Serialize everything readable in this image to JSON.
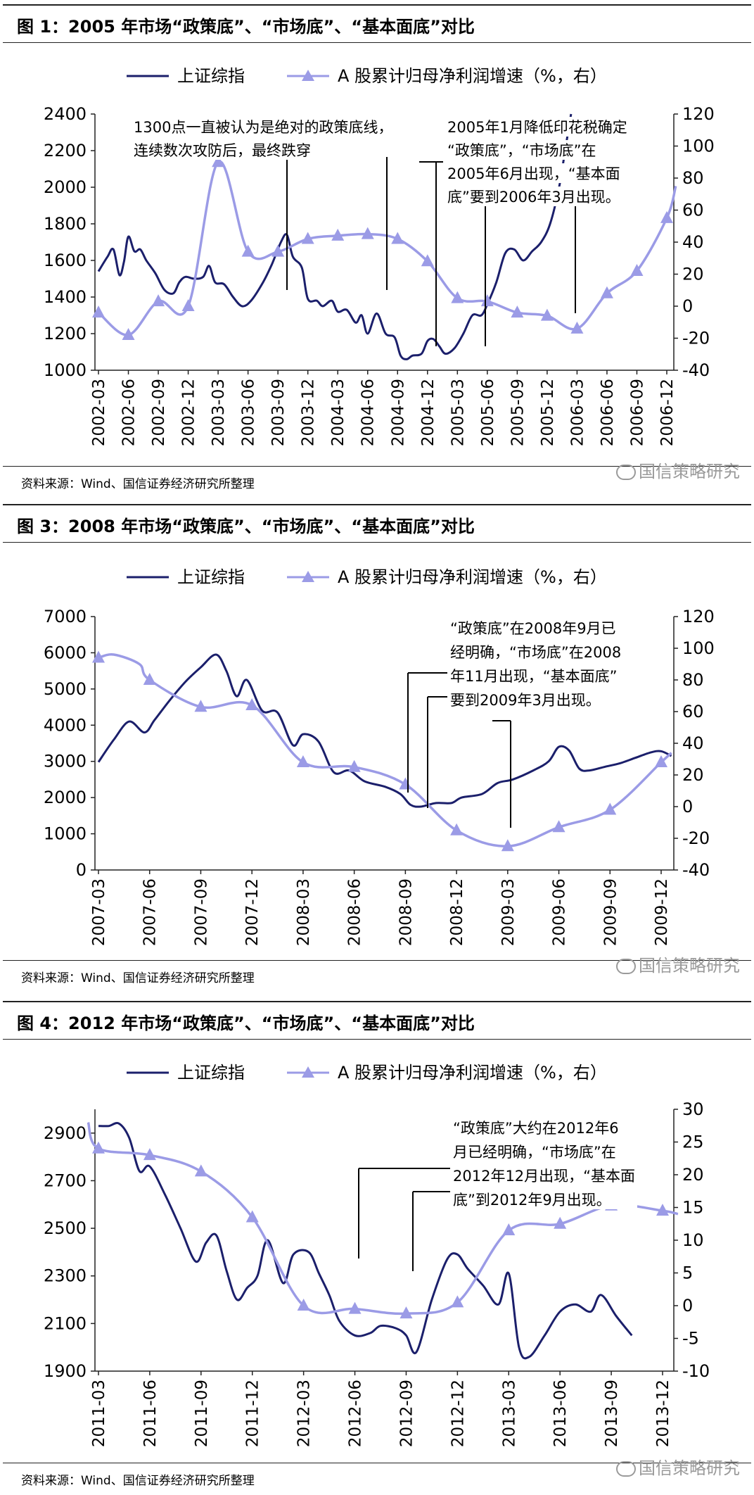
{
  "colors": {
    "index_line": "#1b1f6b",
    "profit_line": "#9b9be6",
    "frame": "#222222",
    "watermark": "#9a9a9a"
  },
  "source": "资料来源：Wind、国信证券经济研究所整理",
  "watermark": "国信策略研究",
  "chart_data": [
    {
      "type": "line",
      "title": "图 1：2005 年市场“政策底”、“市场底”、“基本面底”对比",
      "legend": [
        "上证综指",
        "A 股累计归母净利润增速（%，右）"
      ],
      "categories": [
        "2002-03",
        "2002-06",
        "2002-09",
        "2002-12",
        "2003-03",
        "2003-06",
        "2003-09",
        "2003-12",
        "2004-03",
        "2004-06",
        "2004-09",
        "2004-12",
        "2005-03",
        "2005-06",
        "2005-09",
        "2005-12",
        "2006-03",
        "2006-06",
        "2006-09",
        "2006-12"
      ],
      "ylim": [
        1000,
        2400
      ],
      "yticks": [
        1000,
        1200,
        1400,
        1600,
        1800,
        2000,
        2200,
        2400
      ],
      "y2lim": [
        -40,
        120
      ],
      "y2ticks": [
        -40,
        -20,
        0,
        20,
        40,
        60,
        80,
        100,
        120
      ],
      "series": [
        {
          "name": "上证综指",
          "axis": "left",
          "points": [
            [
              0,
              1540
            ],
            [
              0.3,
              1620
            ],
            [
              0.5,
              1660
            ],
            [
              0.7,
              1520
            ],
            [
              0.85,
              1590
            ],
            [
              1.0,
              1730
            ],
            [
              1.2,
              1650
            ],
            [
              1.4,
              1660
            ],
            [
              1.6,
              1600
            ],
            [
              1.9,
              1530
            ],
            [
              2.2,
              1440
            ],
            [
              2.5,
              1420
            ],
            [
              2.7,
              1480
            ],
            [
              2.9,
              1510
            ],
            [
              3.2,
              1500
            ],
            [
              3.5,
              1510
            ],
            [
              3.7,
              1570
            ],
            [
              3.9,
              1480
            ],
            [
              4.2,
              1470
            ],
            [
              4.5,
              1400
            ],
            [
              4.8,
              1350
            ],
            [
              5.1,
              1380
            ],
            [
              5.5,
              1480
            ],
            [
              5.8,
              1580
            ],
            [
              6.1,
              1700
            ],
            [
              6.3,
              1740
            ],
            [
              6.5,
              1620
            ],
            [
              6.8,
              1560
            ],
            [
              7.0,
              1390
            ],
            [
              7.3,
              1380
            ],
            [
              7.5,
              1350
            ],
            [
              7.8,
              1380
            ],
            [
              8.0,
              1320
            ],
            [
              8.3,
              1330
            ],
            [
              8.6,
              1260
            ],
            [
              8.8,
              1300
            ],
            [
              9.0,
              1200
            ],
            [
              9.3,
              1310
            ],
            [
              9.6,
              1200
            ],
            [
              9.9,
              1180
            ],
            [
              10.1,
              1080
            ],
            [
              10.3,
              1060
            ],
            [
              10.5,
              1080
            ],
            [
              10.8,
              1090
            ],
            [
              11.0,
              1160
            ],
            [
              11.2,
              1170
            ],
            [
              11.4,
              1130
            ],
            [
              11.6,
              1090
            ],
            [
              11.9,
              1120
            ],
            [
              12.2,
              1200
            ],
            [
              12.5,
              1300
            ],
            [
              12.8,
              1300
            ],
            [
              13.0,
              1360
            ],
            [
              13.3,
              1480
            ],
            [
              13.6,
              1640
            ],
            [
              13.9,
              1660
            ],
            [
              14.2,
              1600
            ],
            [
              14.5,
              1650
            ],
            [
              14.8,
              1700
            ],
            [
              15.1,
              1800
            ],
            [
              15.4,
              2000
            ],
            [
              15.6,
              2200
            ],
            [
              15.8,
              2400
            ]
          ]
        },
        {
          "name": "A 股累计归母净利润增速（%，右）",
          "axis": "right",
          "points": [
            [
              0,
              -4
            ],
            [
              1,
              -18
            ],
            [
              2,
              3
            ],
            [
              3,
              0
            ],
            [
              4,
              90
            ],
            [
              5,
              34
            ],
            [
              6,
              34
            ],
            [
              7,
              42
            ],
            [
              8,
              44
            ],
            [
              9,
              45
            ],
            [
              10,
              42
            ],
            [
              11,
              28
            ],
            [
              12,
              5
            ],
            [
              13,
              3
            ],
            [
              14,
              -4
            ],
            [
              15,
              -6
            ],
            [
              16,
              -14
            ],
            [
              17,
              8
            ],
            [
              18,
              22
            ],
            [
              19,
              55
            ],
            [
              19.3,
              75
            ]
          ]
        }
      ],
      "annotations": [
        "1300点一直被认为是绝对的政策底线，",
        "连续数次攻防后，最终跌穿",
        "2005年1月降低印花税确定",
        "“政策底”，“市场底”在",
        "2005年6月出现，“基本面",
        "底”要到2006年3月出现。"
      ]
    },
    {
      "type": "line",
      "title": "图 3：2008 年市场“政策底”、“市场底”、“基本面底”对比",
      "legend": [
        "上证综指",
        "A 股累计归母净利润增速（%，右）"
      ],
      "categories": [
        "2007-03",
        "2007-06",
        "2007-09",
        "2007-12",
        "2008-03",
        "2008-06",
        "2008-09",
        "2008-12",
        "2009-03",
        "2009-06",
        "2009-09",
        "2009-12"
      ],
      "ylim": [
        0,
        7000
      ],
      "yticks": [
        0,
        1000,
        2000,
        3000,
        4000,
        5000,
        6000,
        7000
      ],
      "y2lim": [
        -40,
        120
      ],
      "y2ticks": [
        -40,
        -20,
        0,
        20,
        40,
        60,
        80,
        100,
        120
      ],
      "series": [
        {
          "name": "上证综指",
          "axis": "left",
          "points": [
            [
              0,
              2980
            ],
            [
              0.3,
              3600
            ],
            [
              0.6,
              4100
            ],
            [
              0.9,
              3800
            ],
            [
              1.1,
              4150
            ],
            [
              1.4,
              4700
            ],
            [
              1.7,
              5200
            ],
            [
              2.0,
              5600
            ],
            [
              2.3,
              5950
            ],
            [
              2.5,
              5500
            ],
            [
              2.7,
              4800
            ],
            [
              2.9,
              5250
            ],
            [
              3.2,
              4400
            ],
            [
              3.5,
              4350
            ],
            [
              3.8,
              3450
            ],
            [
              4.0,
              3750
            ],
            [
              4.3,
              3550
            ],
            [
              4.6,
              2700
            ],
            [
              4.9,
              2750
            ],
            [
              5.2,
              2450
            ],
            [
              5.6,
              2300
            ],
            [
              5.9,
              2100
            ],
            [
              6.1,
              1800
            ],
            [
              6.3,
              1750
            ],
            [
              6.6,
              1850
            ],
            [
              6.9,
              1850
            ],
            [
              7.1,
              2000
            ],
            [
              7.5,
              2100
            ],
            [
              7.8,
              2400
            ],
            [
              8.1,
              2500
            ],
            [
              8.5,
              2750
            ],
            [
              8.8,
              3000
            ],
            [
              9.0,
              3400
            ],
            [
              9.2,
              3300
            ],
            [
              9.4,
              2800
            ],
            [
              9.6,
              2750
            ],
            [
              9.9,
              2850
            ],
            [
              10.2,
              2950
            ],
            [
              10.5,
              3100
            ],
            [
              10.8,
              3250
            ],
            [
              11.0,
              3280
            ],
            [
              11.2,
              3150
            ]
          ]
        },
        {
          "name": "A 股累计归母净利润增速（%，右）",
          "axis": "right",
          "points": [
            [
              0,
              94
            ],
            [
              0.3,
              96
            ],
            [
              0.8,
              90
            ],
            [
              1,
              80
            ],
            [
              2,
              63
            ],
            [
              3,
              64
            ],
            [
              4,
              28
            ],
            [
              5,
              25
            ],
            [
              6,
              14
            ],
            [
              7,
              -15
            ],
            [
              8,
              -25
            ],
            [
              9,
              -13
            ],
            [
              10,
              -2
            ],
            [
              11,
              28
            ],
            [
              11.2,
              34
            ]
          ]
        }
      ],
      "annotations": [
        "“政策底”在2008年9月已",
        "经明确，“市场底”在2008",
        "年11月出现，“基本面底”",
        "要到2009年3月出现。"
      ]
    },
    {
      "type": "line",
      "title": "图 4：2012 年市场“政策底”、“市场底”、“基本面底”对比",
      "legend": [
        "上证综指",
        "A 股累计归母净利润增速（%，右）"
      ],
      "categories": [
        "2011-03",
        "2011-06",
        "2011-09",
        "2011-12",
        "2012-03",
        "2012-06",
        "2012-09",
        "2012-12",
        "2013-03",
        "2013-06",
        "2013-09",
        "2013-12"
      ],
      "ylim": [
        1900,
        3000
      ],
      "yticks": [
        1900,
        2100,
        2300,
        2500,
        2700,
        2900
      ],
      "y2lim": [
        -10,
        30
      ],
      "y2ticks": [
        -10,
        -5,
        0,
        5,
        10,
        15,
        20,
        25,
        30
      ],
      "series": [
        {
          "name": "上证综指",
          "axis": "left",
          "points": [
            [
              0,
              2930
            ],
            [
              0.2,
              2930
            ],
            [
              0.4,
              2940
            ],
            [
              0.6,
              2880
            ],
            [
              0.8,
              2740
            ],
            [
              1.0,
              2760
            ],
            [
              1.3,
              2640
            ],
            [
              1.6,
              2500
            ],
            [
              1.9,
              2360
            ],
            [
              2.1,
              2440
            ],
            [
              2.3,
              2470
            ],
            [
              2.5,
              2320
            ],
            [
              2.7,
              2200
            ],
            [
              2.9,
              2250
            ],
            [
              3.1,
              2300
            ],
            [
              3.3,
              2450
            ],
            [
              3.6,
              2270
            ],
            [
              3.8,
              2390
            ],
            [
              4.1,
              2400
            ],
            [
              4.3,
              2310
            ],
            [
              4.5,
              2220
            ],
            [
              4.7,
              2110
            ],
            [
              5.0,
              2050
            ],
            [
              5.3,
              2060
            ],
            [
              5.5,
              2090
            ],
            [
              5.8,
              2080
            ],
            [
              6.0,
              2050
            ],
            [
              6.2,
              1980
            ],
            [
              6.5,
              2200
            ],
            [
              6.8,
              2370
            ],
            [
              7.0,
              2390
            ],
            [
              7.2,
              2330
            ],
            [
              7.5,
              2260
            ],
            [
              7.8,
              2180
            ],
            [
              8.0,
              2310
            ],
            [
              8.2,
              2000
            ],
            [
              8.4,
              1960
            ],
            [
              8.7,
              2050
            ],
            [
              9.0,
              2150
            ],
            [
              9.3,
              2180
            ],
            [
              9.6,
              2150
            ],
            [
              9.8,
              2220
            ],
            [
              10.1,
              2130
            ],
            [
              10.4,
              2050
            ]
          ]
        },
        {
          "name": "A 股累计归母净利润增速（%，右）",
          "axis": "right",
          "points": [
            [
              -0.2,
              28
            ],
            [
              0,
              24
            ],
            [
              1,
              23
            ],
            [
              2,
              20.5
            ],
            [
              3,
              13.5
            ],
            [
              4,
              0
            ],
            [
              5,
              -0.5
            ],
            [
              6,
              -1.2
            ],
            [
              7,
              0.5
            ],
            [
              8,
              11.5
            ],
            [
              9,
              12.5
            ],
            [
              10,
              15.3
            ],
            [
              11,
              14.5
            ],
            [
              11.3,
              14
            ]
          ]
        }
      ],
      "annotations": [
        "“政策底”大约在2012年6",
        "月已经明确，“市场底”在",
        "2012年12月出现，“基本面",
        "底”到2012年9月出现。"
      ]
    }
  ]
}
